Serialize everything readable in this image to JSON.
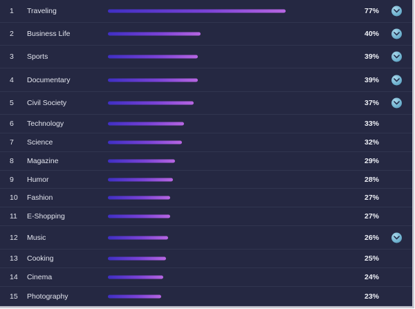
{
  "rows": [
    {
      "rank": "1",
      "label": "Traveling",
      "value": 77,
      "pct": "77%",
      "expand": true
    },
    {
      "rank": "2",
      "label": "Business Life",
      "value": 40,
      "pct": "40%",
      "expand": true
    },
    {
      "rank": "3",
      "label": "Sports",
      "value": 39,
      "pct": "39%",
      "expand": true
    },
    {
      "rank": "4",
      "label": "Documentary",
      "value": 39,
      "pct": "39%",
      "expand": true
    },
    {
      "rank": "5",
      "label": "Civil Society",
      "value": 37,
      "pct": "37%",
      "expand": true
    },
    {
      "rank": "6",
      "label": "Technology",
      "value": 33,
      "pct": "33%",
      "expand": false
    },
    {
      "rank": "7",
      "label": "Science",
      "value": 32,
      "pct": "32%",
      "expand": false
    },
    {
      "rank": "8",
      "label": "Magazine",
      "value": 29,
      "pct": "29%",
      "expand": false
    },
    {
      "rank": "9",
      "label": "Humor",
      "value": 28,
      "pct": "28%",
      "expand": false
    },
    {
      "rank": "10",
      "label": "Fashion",
      "value": 27,
      "pct": "27%",
      "expand": false
    },
    {
      "rank": "11",
      "label": "E-Shopping",
      "value": 27,
      "pct": "27%",
      "expand": false
    },
    {
      "rank": "12",
      "label": "Music",
      "value": 26,
      "pct": "26%",
      "expand": true
    },
    {
      "rank": "13",
      "label": "Cooking",
      "value": 25,
      "pct": "25%",
      "expand": false
    },
    {
      "rank": "14",
      "label": "Cinema",
      "value": 24,
      "pct": "24%",
      "expand": false
    },
    {
      "rank": "15",
      "label": "Photography",
      "value": 23,
      "pct": "23%",
      "expand": false
    }
  ],
  "colors": {
    "background": "#252842",
    "bar_start": "#3f2fc4",
    "bar_end": "#b766e2",
    "expand_icon": "#6fb2cf"
  },
  "icons": {
    "expand": "chevron-down-icon"
  }
}
